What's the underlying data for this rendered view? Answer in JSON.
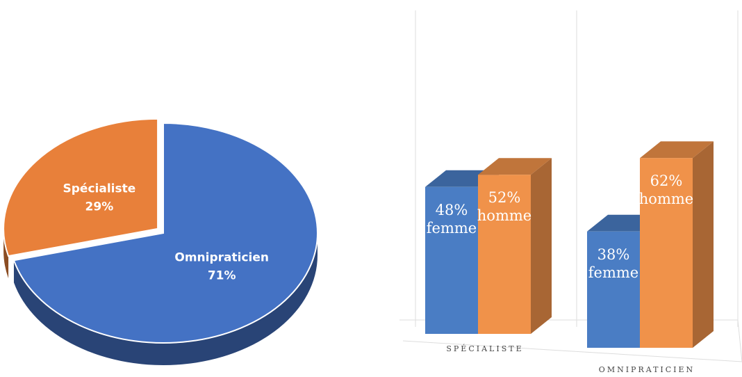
{
  "chart_data": [
    {
      "type": "pie",
      "categories": [
        "Spécialiste",
        "Omnipraticien"
      ],
      "values": [
        29,
        71
      ],
      "value_labels": [
        "29%",
        "71%"
      ],
      "colors": [
        "#e8803a",
        "#4472c4"
      ]
    },
    {
      "type": "bar",
      "categories": [
        "SPÉCIALISTE",
        "OMNIPRATICIEN"
      ],
      "series": [
        {
          "name": "femme",
          "color": "#4a7dc4",
          "values": [
            48,
            38
          ],
          "value_labels": [
            "48%",
            "38%"
          ]
        },
        {
          "name": "homme",
          "color": "#f0924a",
          "values": [
            52,
            62
          ],
          "value_labels": [
            "52%",
            "62%"
          ]
        }
      ]
    }
  ]
}
